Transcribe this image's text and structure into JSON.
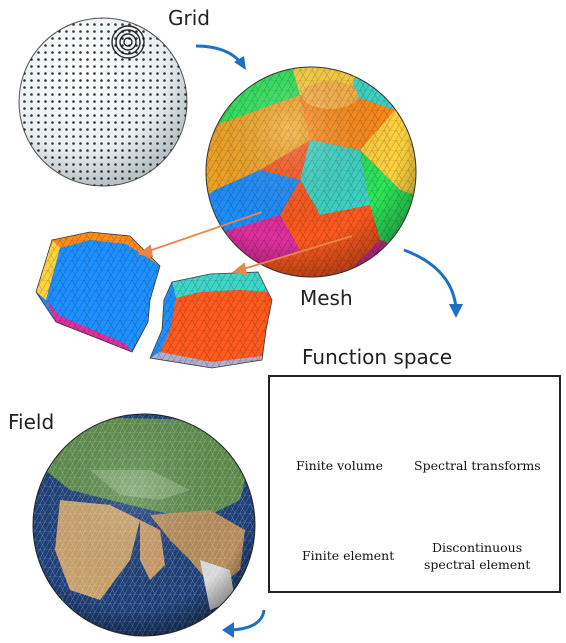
{
  "labels": {
    "grid": "Grid",
    "mesh": "Mesh",
    "function_space": "Function space",
    "field": "Field"
  },
  "function_space": {
    "methods": [
      {
        "name": "Finite volume"
      },
      {
        "name": "Spectral transforms"
      },
      {
        "name": "Finite element"
      },
      {
        "name": "Discontinuous spectral element",
        "line1": "Discontinuous",
        "line2": "spectral element"
      }
    ]
  },
  "colors": {
    "arrow_blue": "#1f6fc2",
    "arrow_orange": "#e8864a",
    "grid_dots": "#111111",
    "fv_lines": "#3c3ccc",
    "spectral_curve": "#e0287a",
    "fe_fill": "#f2c6cc",
    "dse_fill": "#8fd0e8",
    "patch_colors": [
      "#ff8c1a",
      "#f5a623",
      "#1e90ff",
      "#ff5a1f",
      "#3fd6c8",
      "#ffd23f",
      "#2ee65a",
      "#e030a0"
    ]
  }
}
